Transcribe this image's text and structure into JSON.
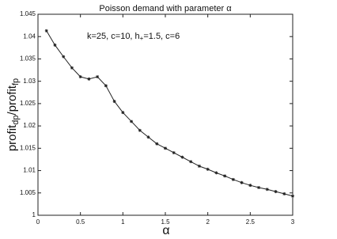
{
  "chart_data": {
    "type": "line",
    "title": "Poisson demand with parameter α",
    "annotation": [
      "k=25,  c=10,  h",
      "+",
      "=1.5,  c=6"
    ],
    "xlabel": "α",
    "ylabel": [
      "profit",
      "dp",
      "/profit",
      "fp"
    ],
    "x": [
      0.1,
      0.2,
      0.3,
      0.4,
      0.5,
      0.6,
      0.7,
      0.8,
      0.9,
      1.0,
      1.1,
      1.2,
      1.3,
      1.4,
      1.5,
      1.6,
      1.7,
      1.8,
      1.9,
      2.0,
      2.1,
      2.2,
      2.3,
      2.4,
      2.5,
      2.6,
      2.7,
      2.8,
      2.9,
      3.0
    ],
    "series": [
      {
        "color": "#222222",
        "values": [
          1.0413,
          1.0381,
          1.0355,
          1.033,
          1.031,
          1.0305,
          1.031,
          1.029,
          1.0255,
          1.023,
          1.021,
          1.019,
          1.0175,
          1.016,
          1.015,
          1.014,
          1.013,
          1.012,
          1.011,
          1.0103,
          1.0095,
          1.0088,
          1.008,
          1.0073,
          1.0067,
          1.0062,
          1.0058,
          1.0053,
          1.0048,
          1.0043
        ]
      }
    ],
    "xlim": [
      0,
      3
    ],
    "xticks": [
      0,
      0.5,
      1,
      1.5,
      2,
      2.5,
      3
    ],
    "ylim": [
      1,
      1.045
    ],
    "yticks": [
      1,
      1.005,
      1.01,
      1.015,
      1.02,
      1.025,
      1.03,
      1.035,
      1.04,
      1.045
    ],
    "grid": false
  }
}
